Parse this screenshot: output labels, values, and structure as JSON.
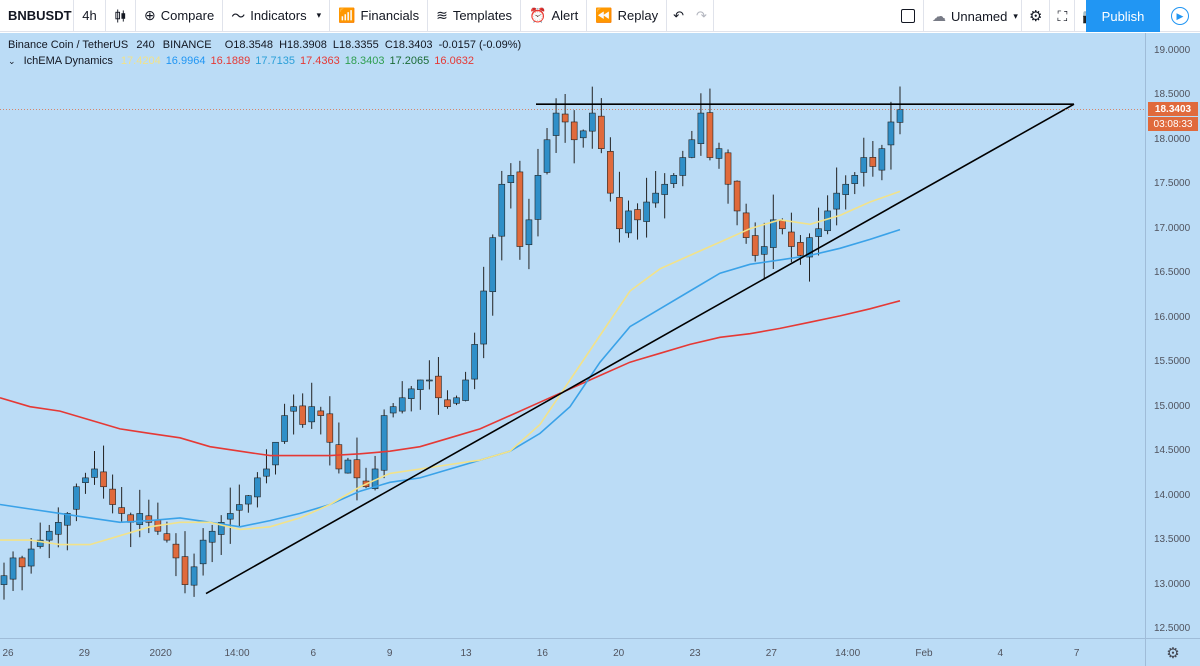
{
  "toolbar": {
    "symbol": "BNBUSDT",
    "interval": "4h",
    "compare": "Compare",
    "indicators": "Indicators",
    "financials": "Financials",
    "templates": "Templates",
    "alert": "Alert",
    "replay": "Replay",
    "layout_name": "Unnamed",
    "publish": "Publish"
  },
  "legend": {
    "title": "Binance Coin / TetherUS",
    "timeframe": "240",
    "exchange": "BINANCE",
    "o": "O18.3548",
    "h": "H18.3908",
    "l": "L18.3355",
    "c": "C18.3403",
    "change": "-0.0157 (-0.09%)",
    "indicator_name": "IchEMA Dynamics",
    "indicator_values": [
      {
        "value": "17.4204",
        "color": "#f2e28a"
      },
      {
        "value": "16.9964",
        "color": "#2196f3"
      },
      {
        "value": "16.1889",
        "color": "#e53935"
      },
      {
        "value": "17.7135",
        "color": "#2a9fd8"
      },
      {
        "value": "17.4363",
        "color": "#e53935"
      },
      {
        "value": "18.3403",
        "color": "#2e9e4f"
      },
      {
        "value": "17.2065",
        "color": "#1b6b36"
      },
      {
        "value": "16.0632",
        "color": "#e53935"
      }
    ]
  },
  "price_axis": {
    "labels": [
      "19.0000",
      "18.5000",
      "18.0000",
      "17.5000",
      "17.0000",
      "16.5000",
      "16.0000",
      "15.5000",
      "15.0000",
      "14.5000",
      "14.0000",
      "13.5000",
      "13.0000",
      "12.5000"
    ],
    "current_price": "18.3403",
    "countdown": "03:08:33"
  },
  "time_axis": {
    "labels": [
      "26",
      "29",
      "2020",
      "14:00",
      "6",
      "9",
      "13",
      "16",
      "20",
      "23",
      "27",
      "14:00",
      "Feb",
      "4",
      "7"
    ],
    "last_label": "14:00"
  },
  "colors": {
    "background": "#bbdcf6",
    "bull_candle": "#2f8fc8",
    "bear_candle": "#e06a3c",
    "ema_fast": "#f2e28a",
    "ema_mid": "#3aa2e8",
    "ema_slow": "#e53935",
    "trendline": "#000000"
  },
  "chart_data": {
    "type": "candlestick",
    "y_range": [
      12.4,
      19.2
    ],
    "close_series": [
      13.1,
      13.3,
      13.2,
      13.4,
      13.5,
      13.6,
      13.7,
      13.8,
      14.1,
      14.2,
      14.3,
      14.1,
      13.9,
      13.8,
      13.7,
      13.8,
      13.7,
      13.6,
      13.5,
      13.3,
      13.0,
      13.2,
      13.5,
      13.6,
      13.7,
      13.8,
      13.9,
      14.0,
      14.2,
      14.3,
      14.6,
      14.9,
      15.0,
      14.8,
      15.0,
      14.9,
      14.6,
      14.3,
      14.4,
      14.2,
      14.1,
      14.3,
      14.9,
      15.0,
      15.1,
      15.2,
      15.3,
      15.3,
      15.1,
      15.0,
      15.1,
      15.3,
      15.7,
      16.3,
      16.9,
      17.5,
      17.6,
      16.8,
      17.1,
      17.6,
      18.0,
      18.3,
      18.2,
      18.0,
      18.1,
      18.3,
      17.9,
      17.4,
      17.0,
      17.2,
      17.1,
      17.3,
      17.4,
      17.5,
      17.6,
      17.8,
      18.0,
      18.3,
      17.8,
      17.9,
      17.5,
      17.2,
      16.9,
      16.7,
      16.8,
      17.1,
      17.0,
      16.8,
      16.7,
      16.9,
      17.0,
      17.2,
      17.4,
      17.5,
      17.6,
      17.8,
      17.7,
      17.9,
      18.2,
      18.34
    ],
    "ema_fast": [
      13.5,
      13.5,
      13.45,
      13.45,
      13.55,
      13.65,
      13.7,
      13.7,
      13.62,
      13.65,
      13.75,
      13.9,
      14.1,
      14.25,
      14.3,
      14.35,
      14.4,
      14.5,
      14.8,
      15.3,
      15.8,
      16.3,
      16.55,
      16.7,
      16.85,
      17.0,
      17.1,
      17.05,
      17.15,
      17.3,
      17.42
    ],
    "ema_mid": [
      13.9,
      13.85,
      13.8,
      13.75,
      13.7,
      13.72,
      13.75,
      13.7,
      13.65,
      13.72,
      13.8,
      13.9,
      14.05,
      14.15,
      14.2,
      14.3,
      14.4,
      14.5,
      14.7,
      15.0,
      15.5,
      15.9,
      16.1,
      16.3,
      16.5,
      16.6,
      16.65,
      16.7,
      16.78,
      16.88,
      16.99
    ],
    "ema_slow": [
      15.1,
      15.0,
      14.95,
      14.85,
      14.75,
      14.7,
      14.65,
      14.55,
      14.5,
      14.45,
      14.45,
      14.45,
      14.47,
      14.5,
      14.55,
      14.65,
      14.75,
      14.9,
      15.05,
      15.2,
      15.35,
      15.5,
      15.6,
      15.7,
      15.78,
      15.82,
      15.88,
      15.95,
      16.02,
      16.1,
      16.19
    ],
    "horizontal_resistance": 18.4,
    "rising_trendline": [
      12.9,
      18.4
    ]
  }
}
